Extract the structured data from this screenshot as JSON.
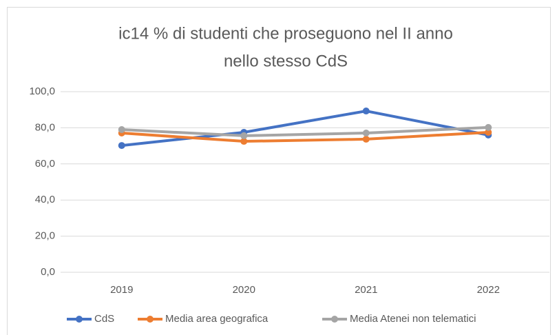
{
  "chart_data": {
    "type": "line",
    "title": [
      "ic14 % di studenti che proseguono nel II anno",
      "nello stesso CdS"
    ],
    "categories": [
      "2019",
      "2020",
      "2021",
      "2022"
    ],
    "series": [
      {
        "name": "CdS",
        "color": "#4472c4",
        "values": [
          70.2,
          77.5,
          89.3,
          76.0
        ]
      },
      {
        "name": "Media area geografica",
        "color": "#ed7d31",
        "values": [
          77.1,
          72.5,
          73.7,
          77.5
        ]
      },
      {
        "name": "Media Atenei non telematici",
        "color": "#a5a5a5",
        "values": [
          79.0,
          75.6,
          77.1,
          80.2
        ]
      }
    ],
    "ylim": [
      0,
      100
    ],
    "yticks": [
      {
        "value": 0,
        "label": "0,0"
      },
      {
        "value": 20,
        "label": "20,0"
      },
      {
        "value": 40,
        "label": "40,0"
      },
      {
        "value": 60,
        "label": "60,0"
      },
      {
        "value": 80,
        "label": "80,0"
      },
      {
        "value": 100,
        "label": "100,0"
      }
    ],
    "grid": true,
    "legend": "bottom"
  }
}
